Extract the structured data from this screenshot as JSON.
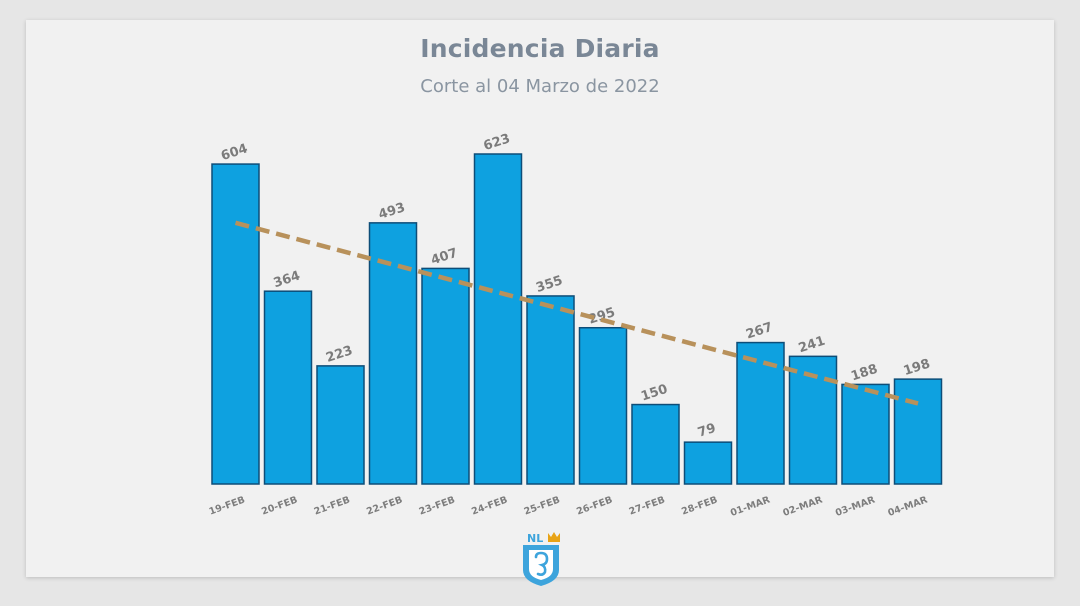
{
  "chart_data": {
    "type": "bar",
    "title": "Incidencia Diaria",
    "subtitle": "Corte al 04 Marzo de 2022",
    "categories": [
      "19-FEB",
      "20-FEB",
      "21-FEB",
      "22-FEB",
      "23-FEB",
      "24-FEB",
      "25-FEB",
      "26-FEB",
      "27-FEB",
      "28-FEB",
      "01-MAR",
      "02-MAR",
      "03-MAR",
      "04-MAR"
    ],
    "values": [
      604,
      364,
      223,
      493,
      407,
      623,
      355,
      295,
      150,
      79,
      267,
      241,
      188,
      198
    ],
    "ylim": [
      0,
      623
    ],
    "grid": false,
    "trendline": {
      "type": "linear",
      "style": "dashed",
      "color": "#b8915b",
      "start": 493,
      "end": 152
    },
    "colors": {
      "bar": "#0ea1e0",
      "bar_border": "#0d4d78",
      "title": "#7a8796"
    }
  },
  "logo": {
    "text": "NL",
    "icon": "nuevo-leon-shield-icon",
    "color": "#3da4dc"
  }
}
